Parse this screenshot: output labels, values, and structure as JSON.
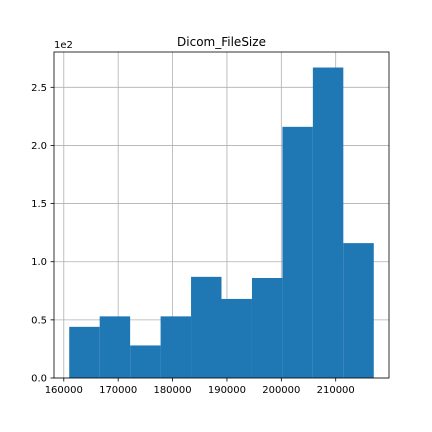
{
  "chart_data": {
    "type": "bar",
    "title": "Dicom_FileSize",
    "xlabel": "",
    "ylabel": "",
    "y_offset_label": "1e2",
    "bins": [
      {
        "x0": 161000,
        "x1": 166600,
        "count": 44
      },
      {
        "x0": 166600,
        "x1": 172200,
        "count": 53
      },
      {
        "x0": 172200,
        "x1": 177800,
        "count": 28
      },
      {
        "x0": 177800,
        "x1": 183400,
        "count": 53
      },
      {
        "x0": 183400,
        "x1": 189000,
        "count": 87
      },
      {
        "x0": 189000,
        "x1": 194600,
        "count": 68
      },
      {
        "x0": 194600,
        "x1": 200200,
        "count": 86
      },
      {
        "x0": 200200,
        "x1": 205800,
        "count": 216
      },
      {
        "x0": 205800,
        "x1": 211400,
        "count": 267
      },
      {
        "x0": 211400,
        "x1": 217000,
        "count": 116
      }
    ],
    "x_ticks": [
      {
        "value": 160000,
        "label": "160000"
      },
      {
        "value": 170000,
        "label": "170000"
      },
      {
        "value": 180000,
        "label": "180000"
      },
      {
        "value": 190000,
        "label": "190000"
      },
      {
        "value": 200000,
        "label": "200000"
      },
      {
        "value": 210000,
        "label": "210000"
      }
    ],
    "y_ticks": [
      {
        "value": 0,
        "label": "0.0"
      },
      {
        "value": 50,
        "label": "0.5"
      },
      {
        "value": 100,
        "label": "1.0"
      },
      {
        "value": 150,
        "label": "1.5"
      },
      {
        "value": 200,
        "label": "2.0"
      },
      {
        "value": 250,
        "label": "2.5"
      }
    ],
    "xlim": [
      158200,
      219800
    ],
    "ylim": [
      0,
      280.35
    ],
    "grid": true,
    "bar_color": "#1f77b4",
    "grid_color": "#b0b0b0"
  }
}
